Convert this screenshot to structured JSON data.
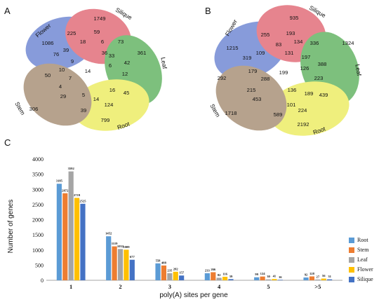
{
  "panels": {
    "a": "A",
    "b": "B",
    "c": "C"
  },
  "venn_sets": [
    "Flower",
    "Silique",
    "Leaf",
    "Root",
    "Stem"
  ],
  "venn_colors": {
    "Flower": "#3f5fc4",
    "Silique": "#d83a4a",
    "Leaf": "#2f9a2f",
    "Root": "#e6e62e",
    "Stem": "#8a6a48"
  },
  "venn_a": {
    "set_labels": {
      "Flower": "Flower",
      "Silique": "Silique",
      "Leaf": "Leaf",
      "Root": "Root",
      "Stem": "Stem"
    },
    "regions": [
      "1086",
      "1749",
      "361",
      "799",
      "306",
      "225",
      "59",
      "18",
      "6",
      "73",
      "76",
      "39",
      "9",
      "36",
      "33",
      "42",
      "6",
      "12",
      "50",
      "10",
      "14",
      "7",
      "4",
      "29",
      "5",
      "16",
      "45",
      "39",
      "14",
      "124"
    ]
  },
  "venn_b": {
    "set_labels": {
      "Flower": "Flower",
      "Silique": "Silique",
      "Leaf": "Leaf",
      "Root": "Root",
      "Stem": "Stem"
    },
    "regions": [
      "1215",
      "935",
      "1324",
      "2192",
      "1718",
      "255",
      "193",
      "83",
      "134",
      "336",
      "319",
      "109",
      "131",
      "197",
      "388",
      "126",
      "223",
      "292",
      "179",
      "199",
      "439",
      "215",
      "288",
      "136",
      "189",
      "453",
      "101",
      "224",
      "589"
    ]
  },
  "chart_data": {
    "type": "bar",
    "categories": [
      "1",
      "2",
      "3",
      "4",
      "5",
      ">5"
    ],
    "series": [
      {
        "name": "Root",
        "values": [
          3185,
          1452,
          558,
          233,
          99,
          92
        ]
      },
      {
        "name": "Stem",
        "values": [
          2872,
          1119,
          488,
          266,
          124,
          128
        ]
      },
      {
        "name": "Leaf",
        "values": [
          3592,
          1032,
          235,
          82,
          30,
          27
        ]
      },
      {
        "name": "Flower",
        "values": [
          2719,
          1009,
          282,
          116,
          41,
          56
        ]
      },
      {
        "name": "Silique",
        "values": [
          2525,
          677,
          157,
          39,
          16,
          31
        ]
      }
    ],
    "colors": [
      "#5b9bd5",
      "#ed7d31",
      "#a5a5a5",
      "#ffc000",
      "#4472c4"
    ],
    "xlabel": "poly(A) sites per gene",
    "ylabel": "Number of genes",
    "ylim": [
      0,
      4000
    ],
    "yticks": [
      "0",
      "500",
      "1000",
      "1500",
      "2000",
      "2500",
      "3000",
      "3500",
      "4000"
    ],
    "grid": false,
    "legend": "right"
  }
}
